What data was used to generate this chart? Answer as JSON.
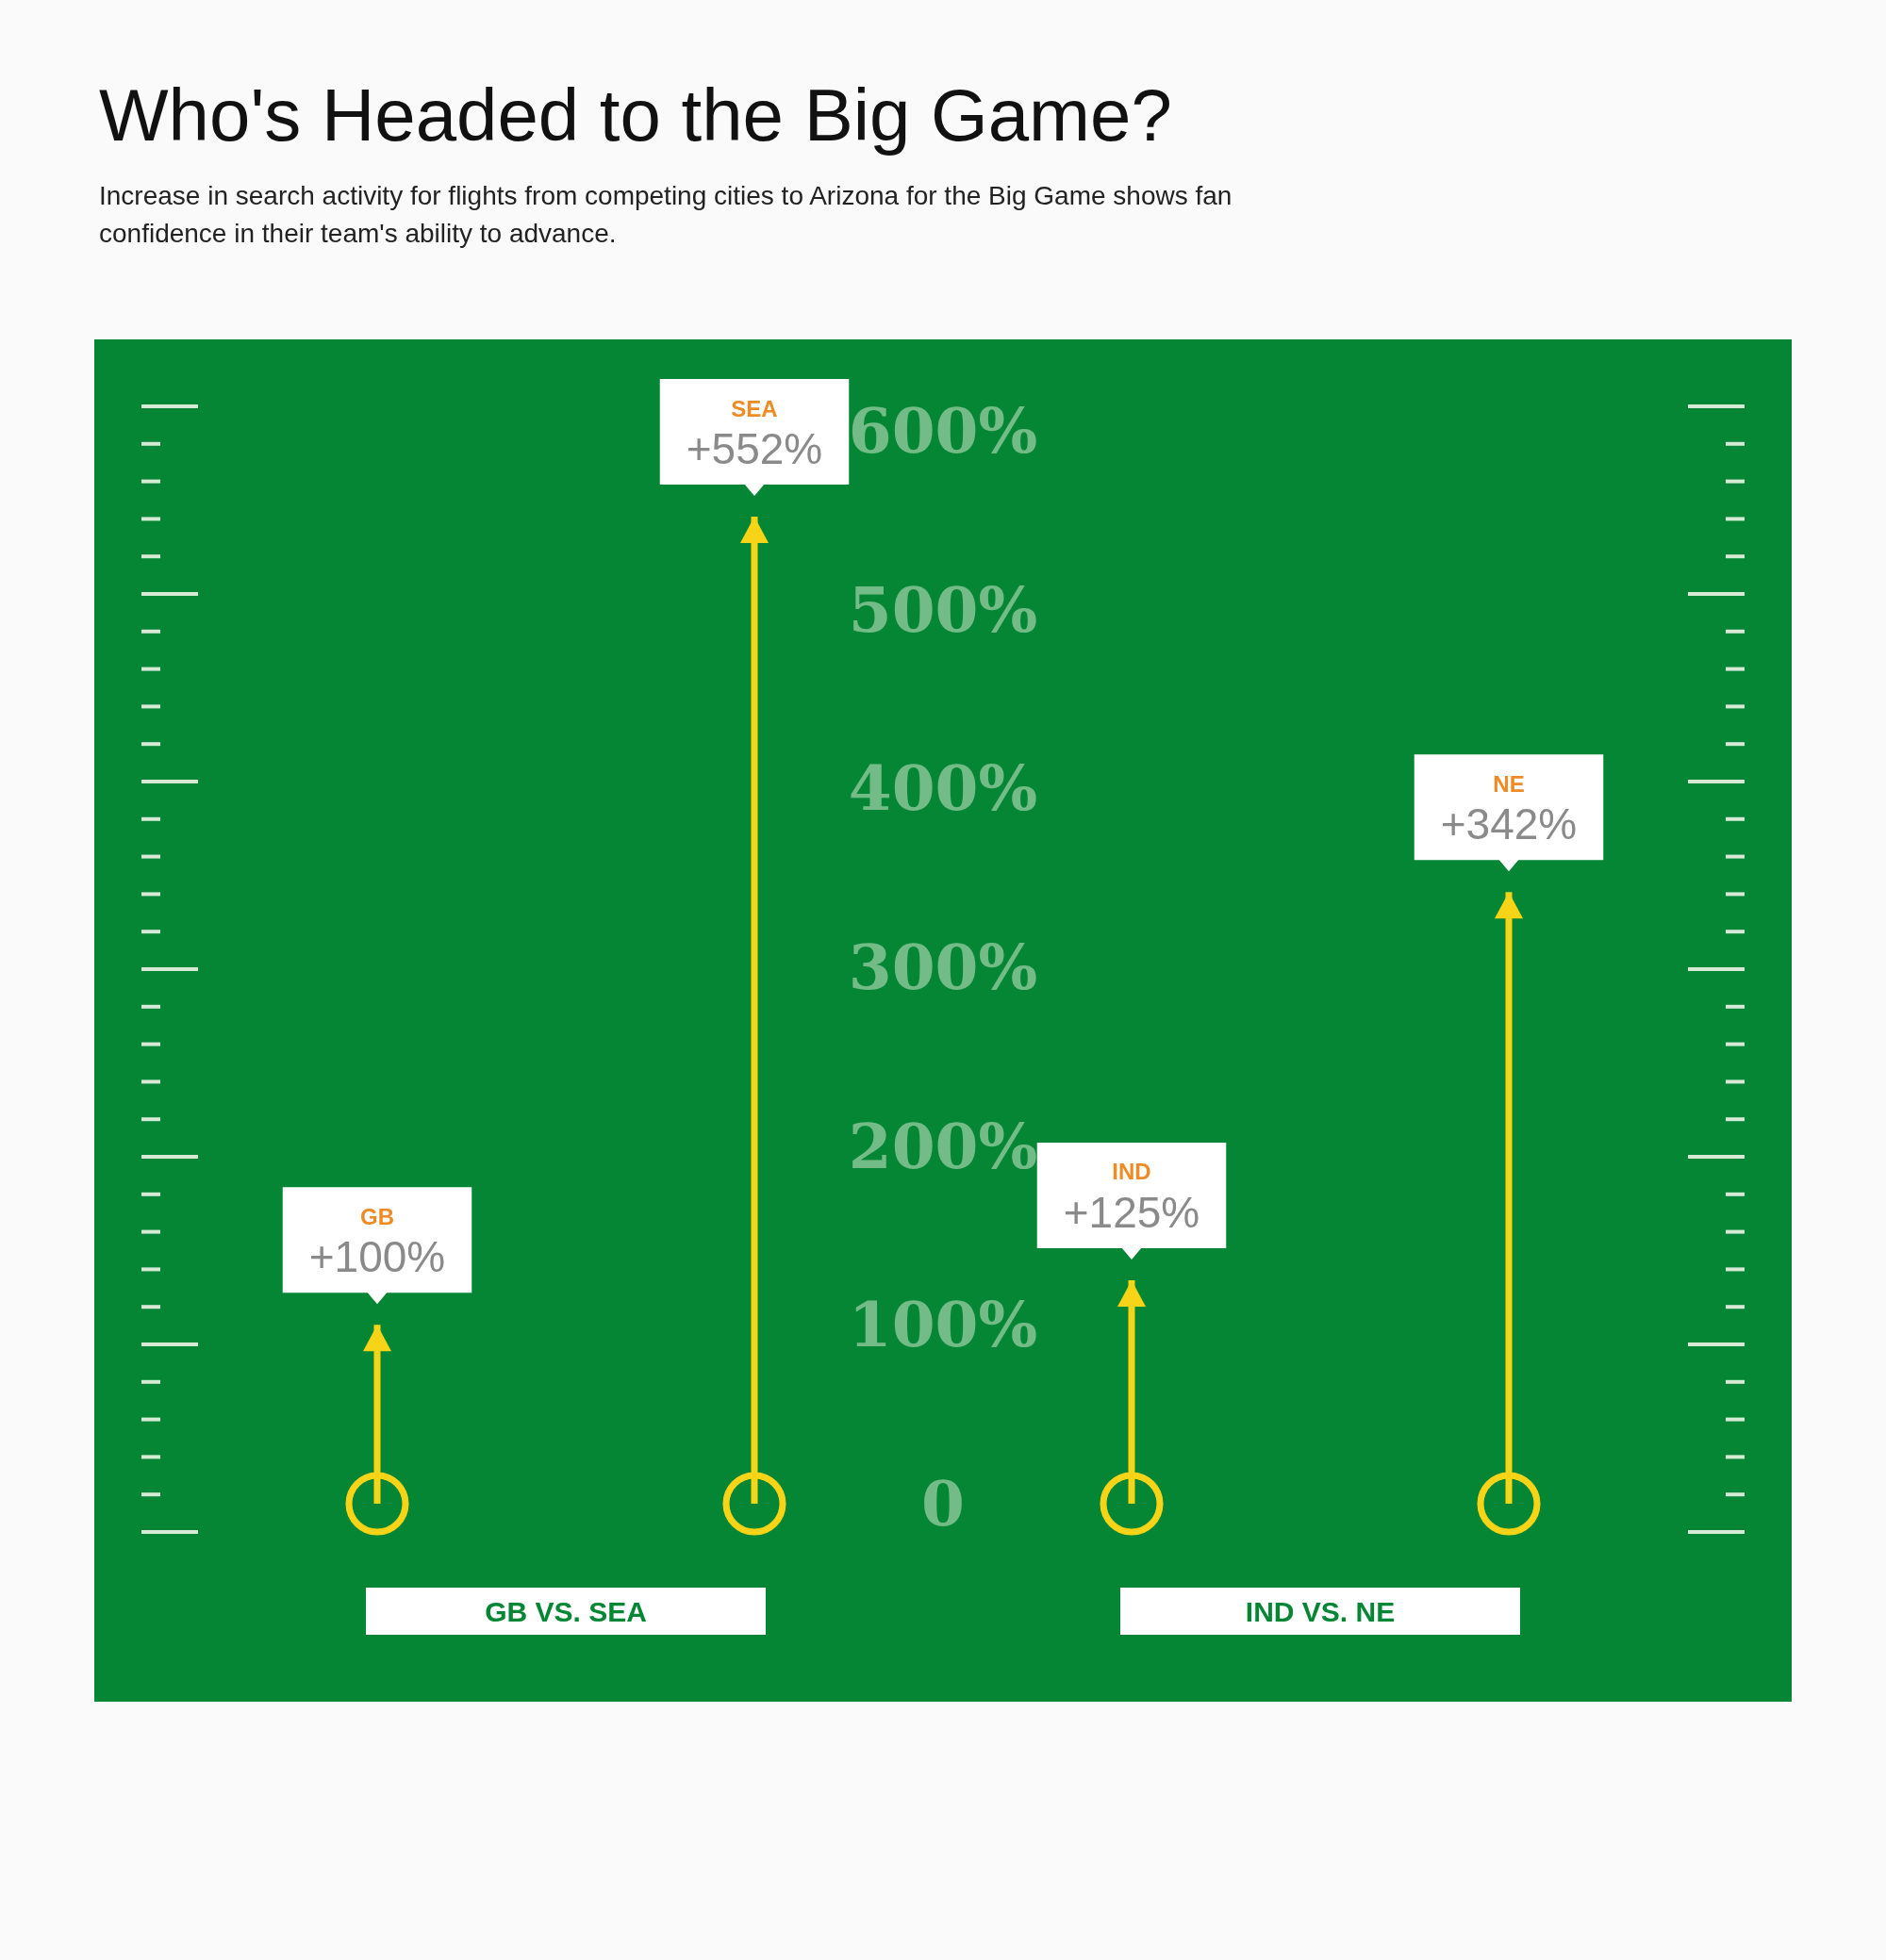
{
  "chart_data": {
    "type": "bar",
    "title": "Who's Headed to the Big Game?",
    "subtitle": "Increase in search activity for flights from competing cities to Arizona for the Big Game shows fan confidence in their team's ability to advance.",
    "categories": [
      "GB",
      "SEA",
      "IND",
      "NE"
    ],
    "values": [
      100,
      552,
      125,
      342
    ],
    "value_labels": [
      "+100%",
      "+552%",
      "+125%",
      "+342%"
    ],
    "color": "#f7d417",
    "ylim": [
      0,
      600
    ],
    "yticks": [
      {
        "value": 0,
        "label": "0"
      },
      {
        "value": 100,
        "label": "100%"
      },
      {
        "value": 200,
        "label": "200%"
      },
      {
        "value": 300,
        "label": "300%"
      },
      {
        "value": 400,
        "label": "400%"
      },
      {
        "value": 500,
        "label": "500%"
      },
      {
        "value": 600,
        "label": "600%"
      }
    ],
    "annotations": [
      "GB VS. SEA",
      "IND VS. NE"
    ]
  }
}
